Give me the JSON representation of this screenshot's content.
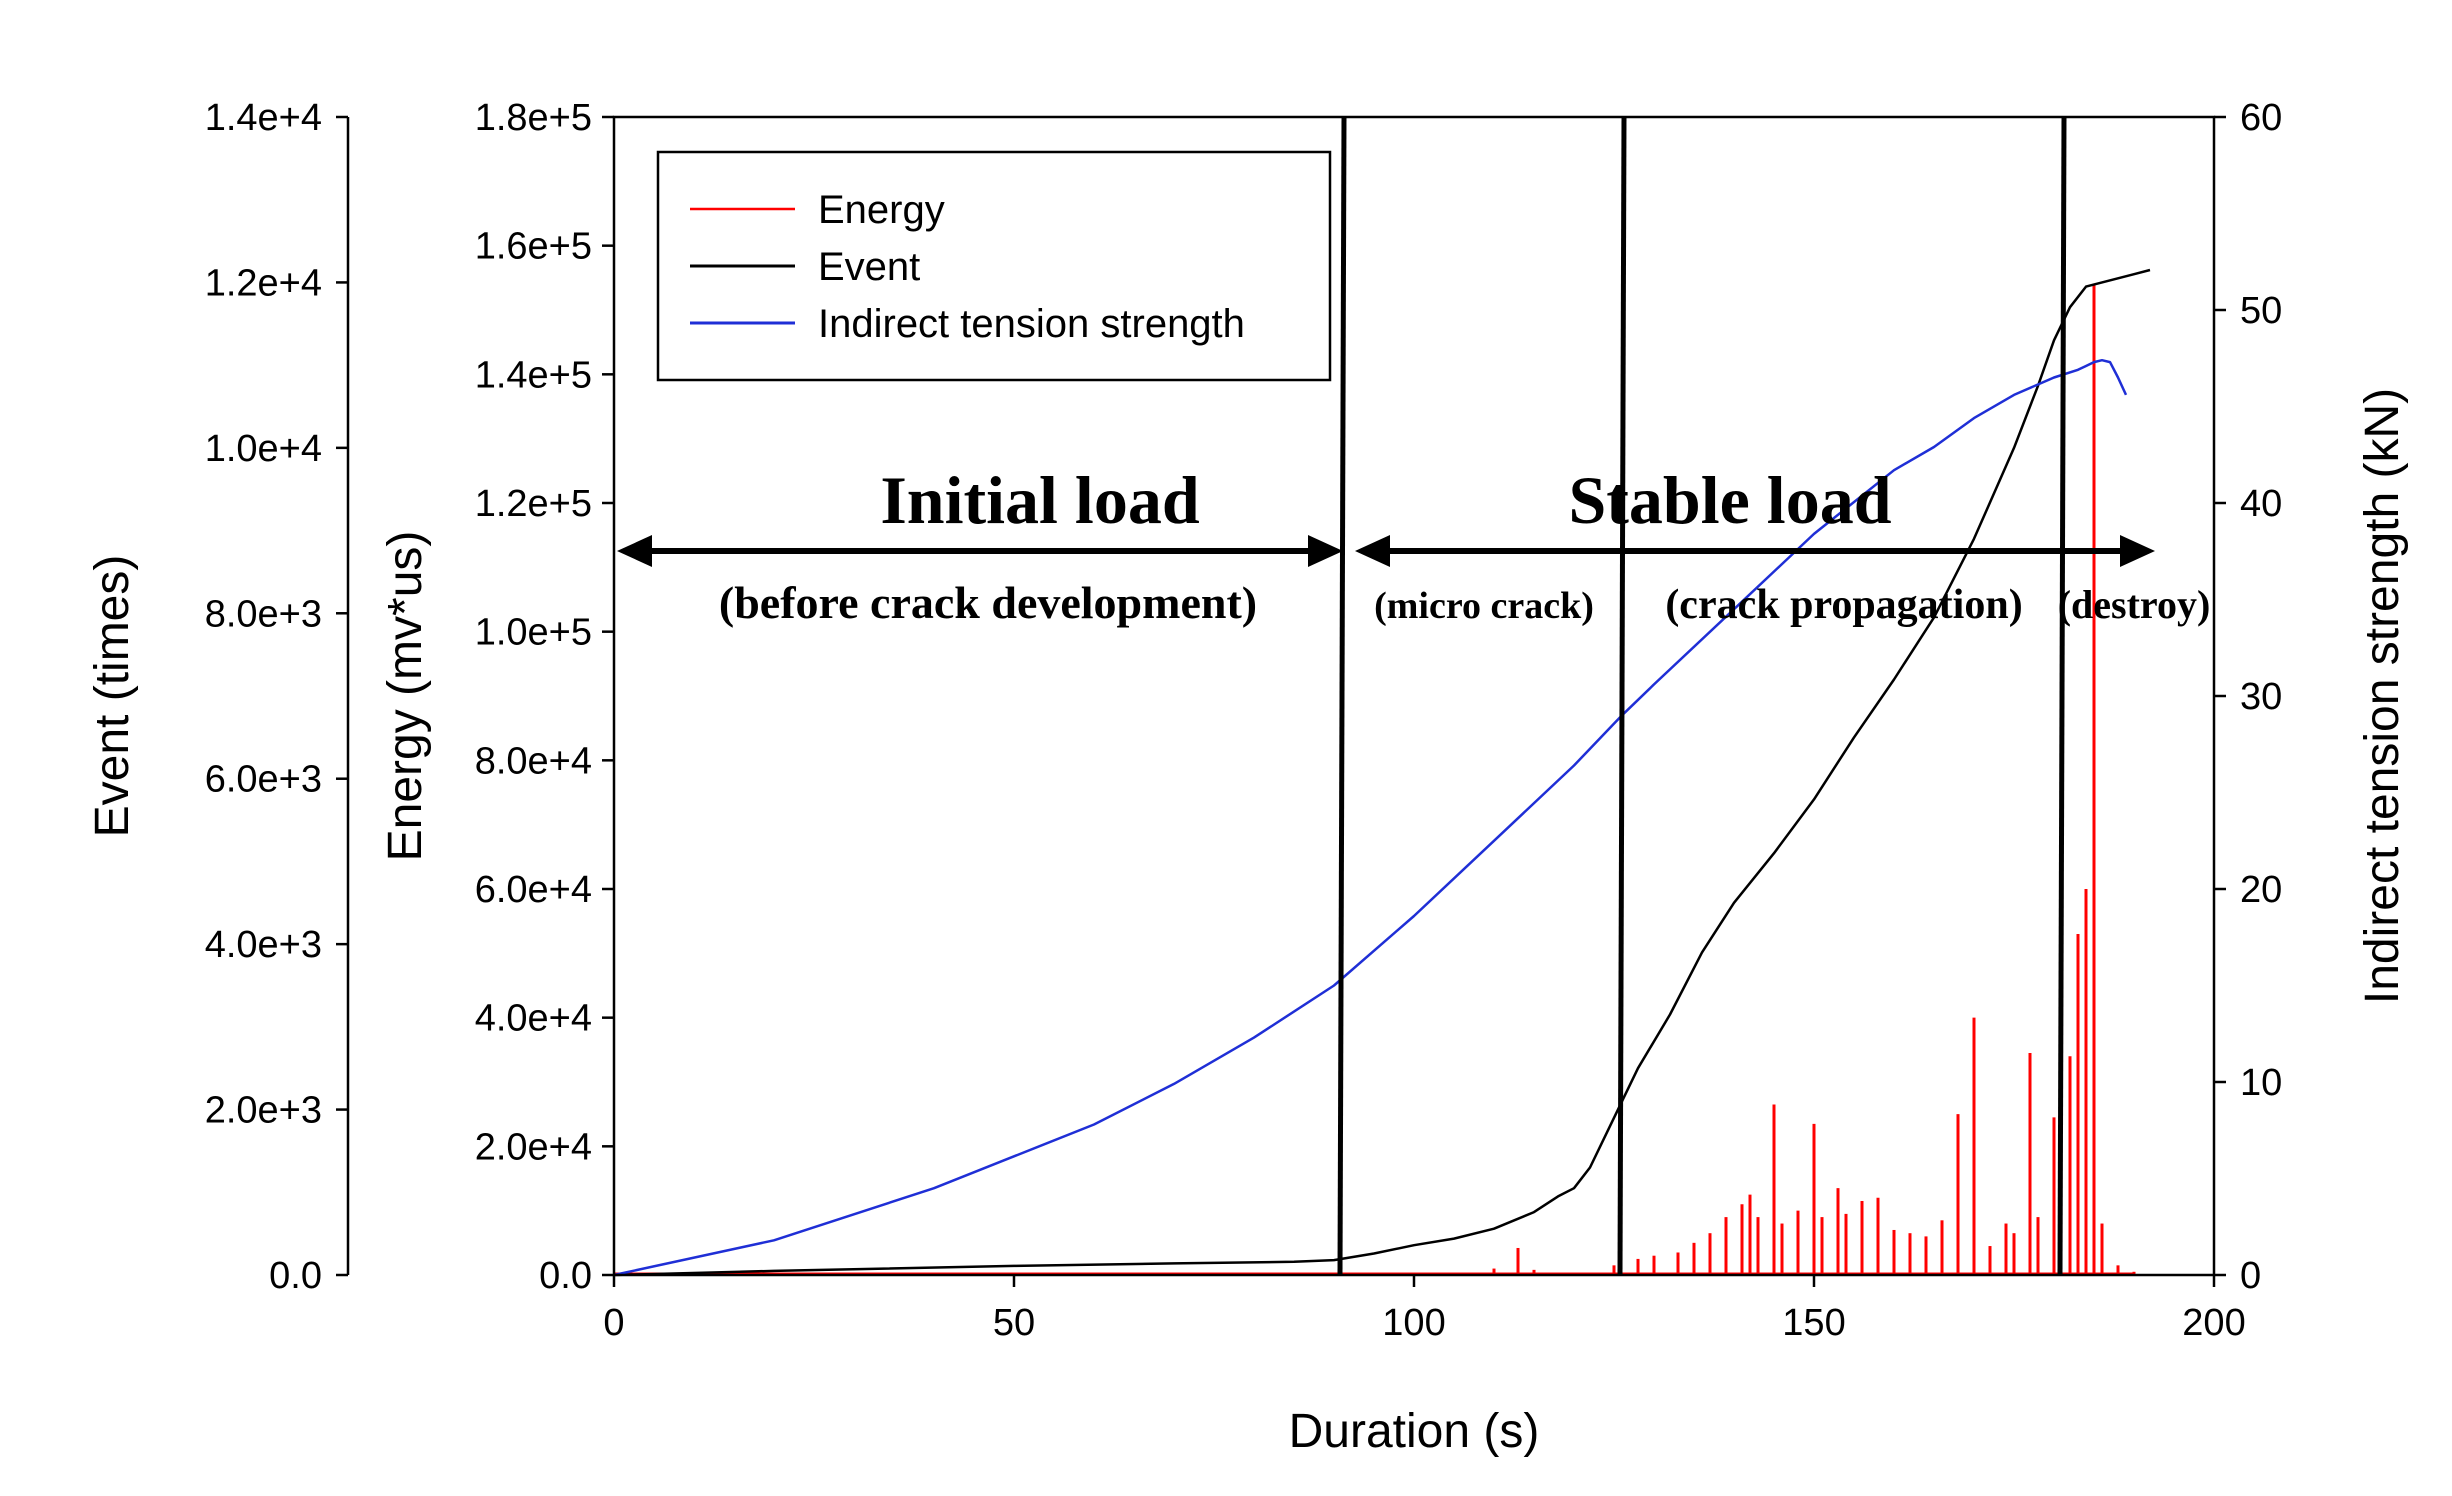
{
  "chart_data": {
    "type": "line",
    "title": "",
    "xlabel": "Duration (s)",
    "xlim": [
      0,
      200
    ],
    "x_ticks": [
      "0",
      "50",
      "100",
      "150",
      "200"
    ],
    "y_axes": {
      "event": {
        "label": "Event (times)",
        "range": [
          0,
          14000
        ],
        "ticks": [
          "0.0",
          "2.0e+3",
          "4.0e+3",
          "6.0e+3",
          "8.0e+3",
          "1.0e+4",
          "1.2e+4",
          "1.4e+4"
        ]
      },
      "energy": {
        "label": "Energy (mv*us)",
        "range": [
          0,
          180000
        ],
        "ticks": [
          "0.0",
          "2.0e+4",
          "4.0e+4",
          "6.0e+4",
          "8.0e+4",
          "1.0e+5",
          "1.2e+5",
          "1.4e+5",
          "1.6e+5",
          "1.8e+5"
        ]
      },
      "strength": {
        "label": "Indirect tension strength (kN)",
        "range": [
          0,
          60
        ],
        "ticks": [
          "0",
          "10",
          "20",
          "30",
          "40",
          "50",
          "60"
        ]
      }
    },
    "legend": {
      "position": "top-left",
      "entries": [
        "Energy",
        "Event",
        "Indirect tension strength"
      ]
    },
    "series": [
      {
        "name": "Energy",
        "axis": "energy",
        "color": "#ff0000",
        "style": "spikes",
        "x": [
          0,
          30,
          60,
          90,
          110,
          113,
          115,
          125,
          128,
          130,
          133,
          135,
          137,
          139,
          141,
          142,
          143,
          145,
          146,
          148,
          150,
          151,
          153,
          154,
          156,
          158,
          160,
          162,
          164,
          166,
          168,
          170,
          172,
          174,
          175,
          177,
          178,
          180,
          182,
          183,
          184,
          185,
          186,
          188,
          190
        ],
        "y": [
          0,
          0,
          0,
          0,
          1000,
          4200,
          800,
          1500,
          2500,
          3000,
          3500,
          5000,
          6500,
          9000,
          11000,
          12500,
          9000,
          26500,
          8000,
          10000,
          23500,
          9000,
          13500,
          9500,
          11500,
          12000,
          7000,
          6500,
          6000,
          8500,
          25000,
          40000,
          4500,
          8000,
          6500,
          34500,
          9000,
          24500,
          34000,
          53000,
          60000,
          154000,
          8000,
          1500,
          500
        ]
      },
      {
        "name": "Event",
        "axis": "event",
        "color": "#000000",
        "style": "line",
        "x": [
          0,
          20,
          50,
          70,
          85,
          90,
          95,
          100,
          105,
          110,
          115,
          118,
          120,
          122,
          125,
          128,
          132,
          136,
          140,
          145,
          150,
          155,
          160,
          165,
          170,
          175,
          178,
          180,
          182,
          184,
          186,
          188,
          190,
          192
        ],
        "y": [
          0,
          50,
          110,
          140,
          160,
          180,
          260,
          360,
          440,
          560,
          760,
          950,
          1050,
          1300,
          1900,
          2500,
          3150,
          3900,
          4500,
          5100,
          5750,
          6500,
          7200,
          7950,
          8900,
          10000,
          10750,
          11300,
          11700,
          11950,
          12000,
          12050,
          12100,
          12150
        ]
      },
      {
        "name": "Indirect tension strength",
        "axis": "strength",
        "color": "#1f2fd6",
        "style": "line",
        "x": [
          0,
          20,
          40,
          60,
          70,
          80,
          90,
          100,
          110,
          120,
          126,
          130,
          140,
          150,
          160,
          165,
          170,
          175,
          180,
          183,
          184,
          185,
          186,
          187,
          188,
          189
        ],
        "y": [
          0,
          1.8,
          4.5,
          7.8,
          9.9,
          12.3,
          15.0,
          18.6,
          22.5,
          26.4,
          29.0,
          30.6,
          34.5,
          38.4,
          41.7,
          42.9,
          44.4,
          45.6,
          46.5,
          46.9,
          47.1,
          47.3,
          47.4,
          47.3,
          46.5,
          45.6
        ]
      }
    ],
    "phase_boundaries_x": [
      91,
      126,
      181
    ],
    "phases": {
      "main_left": "Initial load",
      "main_right": "Stable load",
      "sub": [
        "(before crack development)",
        "(micro crack)",
        "(crack propagation)",
        "(destroy)"
      ]
    }
  }
}
